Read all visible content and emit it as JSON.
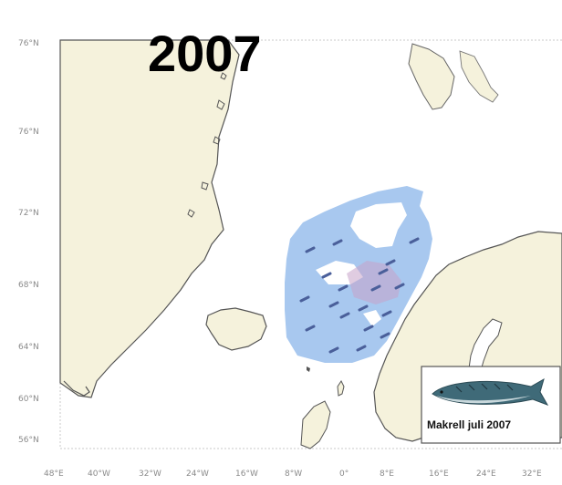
{
  "title": "2007",
  "legend": {
    "label": "Makrell juli 2007",
    "icon": "mackerel-fish-icon"
  },
  "lat_labels": [
    "76°N",
    "76°N",
    "72°N",
    "68°N",
    "64°N",
    "60°N",
    "56°N"
  ],
  "lon_labels": [
    "48°E",
    "40°W",
    "32°W",
    "24°W",
    "16°W",
    "8°W",
    "0°",
    "8°E",
    "16°E",
    "24°E",
    "32°E"
  ],
  "colors": {
    "land": "#f5f2dc",
    "coast": "#555555",
    "sea": "#ffffff",
    "distribution": "#a8c8ef",
    "high_density": "#c7a3c8",
    "border": "#8a8a8a"
  }
}
